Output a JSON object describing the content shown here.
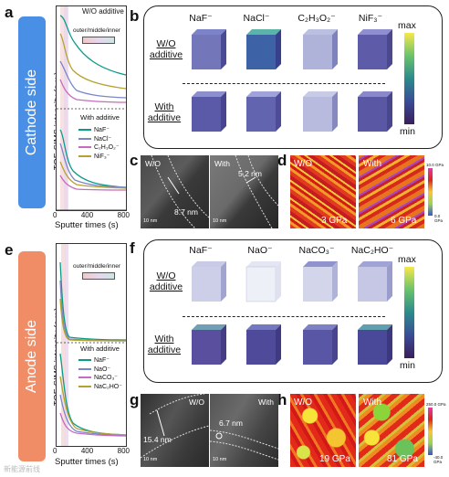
{
  "panels": {
    "a": "a",
    "b": "b",
    "c": "c",
    "d": "d",
    "e": "e",
    "f": "f",
    "g": "g",
    "h": "h"
  },
  "sides": {
    "cathode": "Cathode side",
    "anode": "Anode side"
  },
  "colors": {
    "cathode": "#4a8fe6",
    "anode": "#f08d66",
    "c1": "#0c9a88",
    "c2": "#7b86c9",
    "c3": "#c66bbd",
    "c4": "#b5a22e"
  },
  "tof_cathode": {
    "ylabel": "TOF-SIMS intensity (a.u.)",
    "top_title": "W/O additive",
    "bottom_title": "With additive",
    "layer_label": "outer/middle/inner",
    "legend": [
      "NaF⁻",
      "NaCl⁻",
      "C₂H₃O₂⁻",
      "NiF₃⁻"
    ],
    "x_ticks": [
      "0",
      "400",
      "800"
    ],
    "xlabel": "Sputter times (s)"
  },
  "tof_anode": {
    "ylabel": "TOF-SIMS intensity (a.u.)",
    "top_title": "",
    "bottom_title": "With additive",
    "layer_label": "outer/middle/inner",
    "legend": [
      "NaF⁻",
      "NaO⁻",
      "NaCO₃⁻",
      "NaC₂HO⁻"
    ],
    "x_ticks": [
      "0",
      "400",
      "800"
    ],
    "xlabel": "Sputter times (s)"
  },
  "cube_cathode": {
    "ions": [
      "NaF⁻",
      "NaCl⁻",
      "C₂H₃O₂⁻",
      "NiF₃⁻"
    ],
    "row_top": "W/O additive",
    "row_bottom": "With additive",
    "cbar_max": "max",
    "cbar_min": "min"
  },
  "cube_anode": {
    "ions": [
      "NaF⁻",
      "NaO⁻",
      "NaCO₃⁻",
      "NaC₂HO⁻"
    ],
    "row_top": "W/O additive",
    "row_bottom": "With additive",
    "cbar_max": "max",
    "cbar_min": "min"
  },
  "tem_c": {
    "left_label": "W/O",
    "right_label": "With",
    "left_value": "8.7 nm",
    "right_value": "5.2 nm",
    "scale": "10 nm"
  },
  "tem_g": {
    "left_label": "W/O",
    "right_label": "With",
    "left_value": "15.4 nm",
    "right_value": "6.7 nm",
    "scale": "10 nm"
  },
  "map_d": {
    "left_label": "W/O",
    "right_label": "With",
    "left_value": "3 GPa",
    "right_value": "6 GPa",
    "cbar_top": "10.0 GPa",
    "cbar_bottom": "0.0 GPa"
  },
  "map_h": {
    "left_label": "W/O",
    "right_label": "With",
    "left_value": "19 GPa",
    "right_value": "81 GPa",
    "cbar_top": "250.0 GPa",
    "cbar_bottom": "-40.0 GPa"
  },
  "watermark": "新能源前线"
}
